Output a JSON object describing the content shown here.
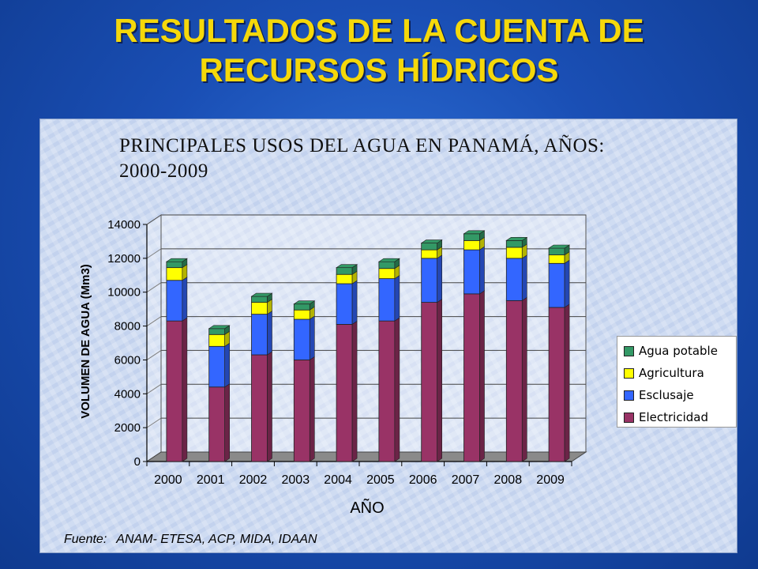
{
  "slide": {
    "title_line1": "RESULTADOS DE LA CUENTA DE",
    "title_line2": "RECURSOS HÍDRICOS"
  },
  "footer": {
    "label": "Fuente:",
    "sources": "ANAM- ETESA, ACP, MIDA, IDAAN"
  },
  "colors": {
    "electricidad": "#993366",
    "esclusaje": "#3366ff",
    "agricultura": "#ffff00",
    "agua_potable": "#339966",
    "title": "#f5d80a"
  },
  "chart_data": {
    "type": "bar",
    "stacked": true,
    "title_line1": "PRINCIPALES USOS DEL AGUA EN PANAMÁ, AÑOS:",
    "title_line2": "2000-2009",
    "xlabel": "AÑO",
    "ylabel": "VOLUMEN DE AGUA (Mm3)",
    "ylim": [
      0,
      14000
    ],
    "yticks": [
      "0",
      "2000",
      "4000",
      "6000",
      "8000",
      "10000",
      "12000",
      "14000"
    ],
    "grid": true,
    "legend_position": "right",
    "categories": [
      "2000",
      "2001",
      "2002",
      "2003",
      "2004",
      "2005",
      "2006",
      "2007",
      "2008",
      "2009"
    ],
    "series": [
      {
        "name": "Electricidad",
        "values": [
          8300,
          4400,
          6300,
          6000,
          8100,
          8300,
          9400,
          9900,
          9500,
          9100
        ]
      },
      {
        "name": "Esclusaje",
        "values": [
          2400,
          2400,
          2400,
          2400,
          2400,
          2500,
          2600,
          2600,
          2500,
          2600
        ]
      },
      {
        "name": "Agricultura",
        "values": [
          750,
          700,
          700,
          550,
          550,
          600,
          500,
          550,
          650,
          500
        ]
      },
      {
        "name": "Agua potable",
        "values": [
          350,
          350,
          350,
          350,
          400,
          400,
          400,
          400,
          400,
          400
        ]
      }
    ]
  }
}
